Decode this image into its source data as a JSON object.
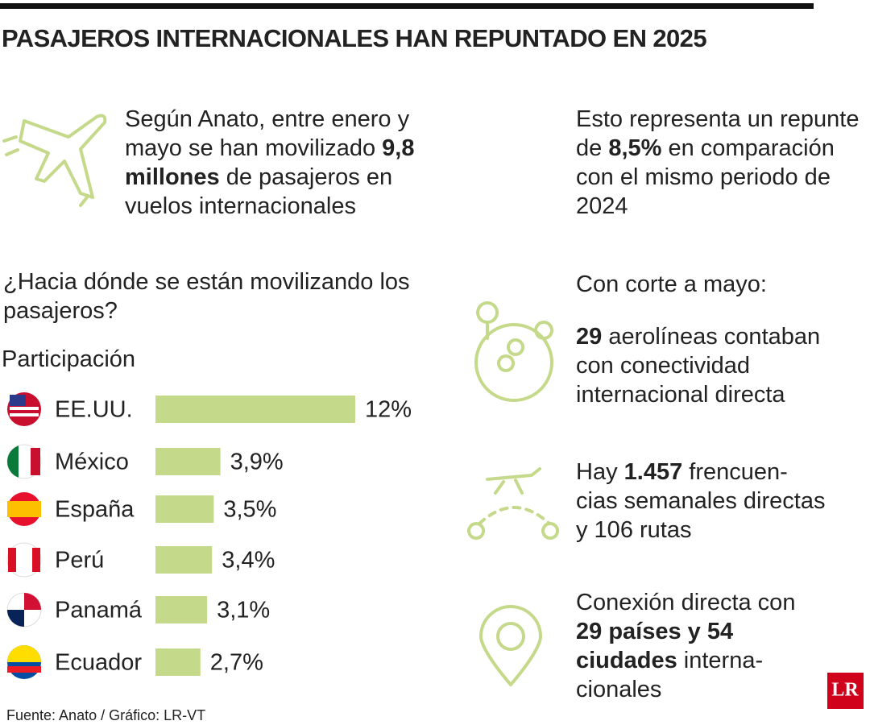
{
  "title": "PASAJEROS INTERNACIONALES HAN REPUNTADO EN 2025",
  "intro": [
    "Según Anato, entre enero y mayo se han movilizado ",
    "9,8 millones",
    " de pasajeros en vuelos internacionales"
  ],
  "growth": [
    "Esto representa un repunte de ",
    "8,5%",
    " en comparación con el mismo periodo de 2024"
  ],
  "question": "¿Hacia dónde se están movilizando los pasajeros?",
  "cutoff": "Con corte a mayo:",
  "stats": [
    [
      "29",
      " aerolíneas contaban con conectividad internacional directa"
    ],
    [
      "Hay ",
      "1.457",
      " frencuen-cias semanales directas y 106 rutas"
    ],
    [
      "Conexión directa con ",
      "29 países y 54 ciudades",
      " interna-cionales"
    ]
  ],
  "source": "Fuente: Anato / Gráfico: LR-VT",
  "logo": "LR",
  "chart_data": {
    "type": "bar",
    "subtitle": "Participación",
    "categories": [
      "EE.UU.",
      "México",
      "España",
      "Perú",
      "Panamá",
      "Ecuador"
    ],
    "values": [
      12,
      3.9,
      3.5,
      3.4,
      3.1,
      2.7
    ],
    "value_labels": [
      "12%",
      "3,9%",
      "3,5%",
      "3,4%",
      "3,1%",
      "2,7%"
    ],
    "color": "#c5d98b"
  }
}
